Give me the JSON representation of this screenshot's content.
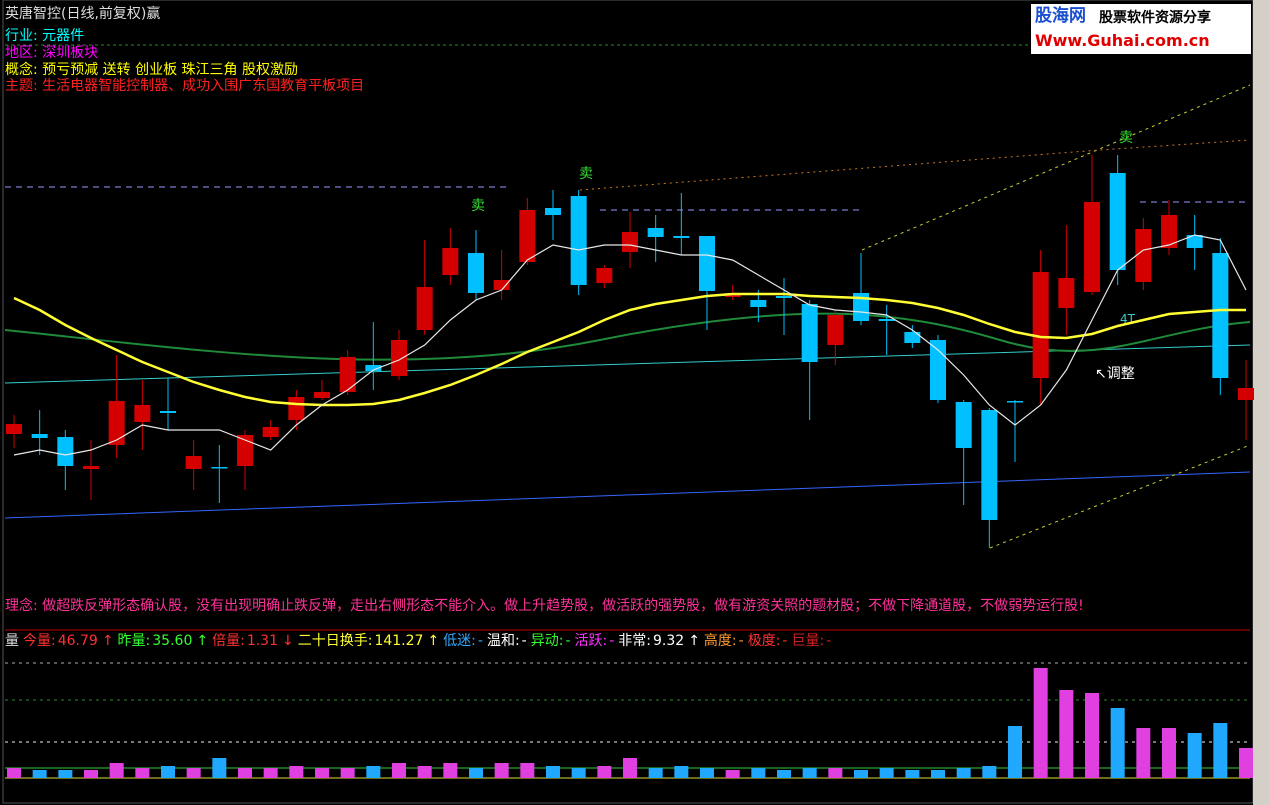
{
  "header": {
    "title": "英唐智控(日线,前复权)赢"
  },
  "info": [
    {
      "label": "行业:",
      "value": "元器件"
    },
    {
      "label": "地区:",
      "value": "深圳板块"
    },
    {
      "label": "概念:",
      "value": "预亏预减 送转 创业板 珠江三角 股权激励"
    },
    {
      "label": "主题:",
      "value": "生活电器智能控制器、成功入围广东国教育平板项目"
    }
  ],
  "annotations": [
    "卖",
    "卖",
    "卖",
    "4T",
    "↖调整"
  ],
  "motto": "理念: 做超跌反弹形态确认股，没有出现明确止跌反弹，走出右侧形态不能介入。做上升趋势股，做活跃的强势股，做有游资关照的题材股；不做下降通道股，不做弱势运行股!",
  "volume_title": "量",
  "stats": [
    {
      "label": "今量:",
      "value": "46.79",
      "trend": "↑"
    },
    {
      "label": "昨量:",
      "value": "35.60",
      "trend": "↑"
    },
    {
      "label": "倍量:",
      "value": "1.31",
      "trend": "↓"
    },
    {
      "label": "二十日换手:",
      "value": "141.27",
      "trend": "↑"
    },
    {
      "label": "低迷:",
      "value": "-"
    },
    {
      "label": "温和:",
      "value": "-"
    },
    {
      "label": "异动:",
      "value": "-"
    },
    {
      "label": "活跃:",
      "value": "-"
    },
    {
      "label": "非常:",
      "value": "9.32",
      "trend": "↑"
    },
    {
      "label": "高度:",
      "value": "-"
    },
    {
      "label": "极度:",
      "value": "-"
    },
    {
      "label": "巨量:",
      "value": "-"
    }
  ],
  "watermark": {
    "brand": "股海网",
    "slogan": "股票软件资源分享",
    "url": "Www.Guhai.com.cn"
  },
  "chart_data": [
    {
      "type": "candlestick",
      "ylim": [
        0,
        600
      ],
      "up_color": "#d40000",
      "down_color": "#00c0ff",
      "open": [
        166,
        166,
        163,
        131,
        155,
        178,
        189,
        131,
        133,
        134,
        163,
        180,
        202,
        208,
        235,
        224,
        270,
        325,
        347,
        310,
        338,
        392,
        404,
        317,
        348,
        372,
        364,
        364,
        303,
        300,
        304,
        296,
        255,
        307,
        281,
        268,
        260,
        198,
        190,
        199,
        222,
        292,
        308,
        427,
        318,
        352,
        365,
        347,
        200
      ],
      "close": [
        176,
        162,
        134,
        134,
        199,
        195,
        187,
        144,
        132,
        165,
        173,
        203,
        208,
        243,
        229,
        260,
        313,
        352,
        307,
        320,
        390,
        385,
        315,
        332,
        368,
        363,
        362,
        309,
        307,
        293,
        302,
        238,
        285,
        279,
        279,
        257,
        200,
        152,
        80,
        198,
        328,
        322,
        398,
        330,
        371,
        385,
        352,
        222,
        212
      ],
      "high": [
        185,
        190,
        170,
        160,
        245,
        220,
        222,
        160,
        155,
        170,
        180,
        210,
        220,
        250,
        278,
        270,
        360,
        372,
        370,
        350,
        402,
        410,
        410,
        335,
        388,
        385,
        407,
        364,
        315,
        310,
        322,
        300,
        290,
        347,
        295,
        275,
        265,
        200,
        192,
        200,
        350,
        375,
        445,
        445,
        382,
        400,
        385,
        362,
        240
      ],
      "low": [
        152,
        145,
        110,
        100,
        142,
        150,
        170,
        110,
        97,
        110,
        160,
        170,
        200,
        205,
        210,
        220,
        265,
        315,
        300,
        300,
        335,
        360,
        305,
        312,
        332,
        338,
        345,
        270,
        300,
        278,
        265,
        180,
        235,
        275,
        245,
        252,
        197,
        95,
        52,
        138,
        195,
        265,
        305,
        315,
        310,
        345,
        330,
        205,
        160
      ],
      "lines": [
        {
          "color": "#ffff33",
          "values": [
            302,
            290,
            275,
            262,
            250,
            238,
            228,
            218,
            210,
            203,
            198,
            196,
            195,
            195,
            196,
            200,
            207,
            215,
            225,
            236,
            248,
            258,
            268,
            280,
            290,
            296,
            300,
            304,
            306,
            306,
            306,
            304,
            303,
            302,
            300,
            297,
            292,
            285,
            276,
            268,
            263,
            262,
            266,
            274,
            280,
            286,
            288,
            290,
            290
          ]
        },
        {
          "color": "#e8e8e8",
          "values": [
            145,
            150,
            145,
            150,
            160,
            175,
            170,
            170,
            170,
            160,
            150,
            175,
            195,
            210,
            230,
            240,
            255,
            280,
            300,
            310,
            340,
            355,
            350,
            355,
            355,
            350,
            345,
            345,
            340,
            325,
            310,
            295,
            290,
            288,
            285,
            270,
            250,
            225,
            195,
            175,
            195,
            230,
            280,
            330,
            350,
            355,
            365,
            360,
            310
          ]
        }
      ]
    },
    {
      "type": "bar",
      "ylim": [
        0,
        120
      ],
      "up_color": "#e040e0",
      "down_color": "#20a8ff",
      "values": [
        10,
        8,
        8,
        8,
        15,
        10,
        12,
        10,
        20,
        10,
        10,
        12,
        10,
        10,
        12,
        15,
        12,
        15,
        10,
        15,
        15,
        12,
        10,
        12,
        20,
        10,
        12,
        10,
        8,
        10,
        8,
        10,
        10,
        8,
        10,
        8,
        8,
        10,
        12,
        52,
        110,
        88,
        85,
        70,
        50,
        50,
        45,
        55,
        30
      ]
    }
  ]
}
